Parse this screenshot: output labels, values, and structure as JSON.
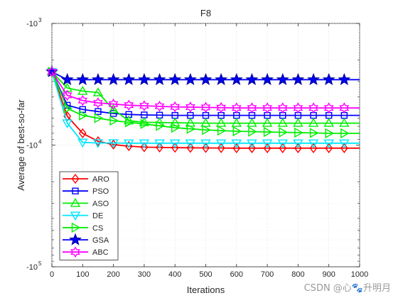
{
  "chart_data": {
    "type": "line",
    "title": "F8",
    "xlabel": "Iterations",
    "ylabel": "Average of best-so-far",
    "xlim": [
      0,
      1000
    ],
    "ylim": [
      -100000,
      -1000
    ],
    "yscale": "log",
    "grid": true,
    "legend_position": "lower-left",
    "x_ticks": [
      0,
      100,
      200,
      300,
      400,
      500,
      600,
      700,
      800,
      900,
      1000
    ],
    "x_tick_labels": [
      "0",
      "100",
      "200",
      "300",
      "400",
      "500",
      "600",
      "700",
      "800",
      "900",
      "1000"
    ],
    "y_ticks": [
      -1000,
      -10000,
      -100000
    ],
    "y_tick_labels": [
      "-10^3",
      "-10^4",
      "-10^5"
    ],
    "marker_x": [
      0,
      50,
      100,
      150,
      200,
      250,
      300,
      350,
      400,
      450,
      500,
      550,
      600,
      650,
      700,
      750,
      800,
      850,
      900,
      950
    ],
    "x": [
      0,
      50,
      100,
      150,
      200,
      250,
      300,
      400,
      500,
      600,
      700,
      800,
      900,
      1000
    ],
    "series": [
      {
        "name": "ARO",
        "color": "#ff0000",
        "marker": "diamond",
        "values": [
          -2500,
          -5800,
          -8000,
          -9300,
          -9900,
          -10200,
          -10400,
          -10500,
          -10550,
          -10600,
          -10600,
          -10600,
          -10600,
          -10600
        ]
      },
      {
        "name": "PSO",
        "color": "#0000ff",
        "marker": "square",
        "values": [
          -2500,
          -4700,
          -5100,
          -5300,
          -5500,
          -5600,
          -5650,
          -5700,
          -5700,
          -5700,
          -5700,
          -5700,
          -5700,
          -5700
        ]
      },
      {
        "name": "ASO",
        "color": "#00ee00",
        "marker": "triangle-up",
        "values": [
          -2500,
          -3400,
          -3600,
          -3700,
          -5100,
          -6300,
          -6500,
          -6550,
          -6600,
          -6600,
          -6600,
          -6600,
          -6600,
          -6600
        ]
      },
      {
        "name": "DE",
        "color": "#00e5ff",
        "marker": "triangle-down",
        "values": [
          -2500,
          -6600,
          -9500,
          -9600,
          -9600,
          -9650,
          -9650,
          -9650,
          -9650,
          -9650,
          -9650,
          -9650,
          -9650,
          -9650
        ]
      },
      {
        "name": "CS",
        "color": "#00ee00",
        "marker": "triangle-right",
        "values": [
          -2500,
          -5000,
          -5700,
          -6000,
          -6300,
          -6500,
          -6700,
          -7200,
          -7500,
          -7700,
          -7800,
          -7900,
          -8000,
          -8000
        ]
      },
      {
        "name": "GSA",
        "color": "#0000ff",
        "marker": "star",
        "values": [
          -2500,
          -2900,
          -2900,
          -2900,
          -2900,
          -2900,
          -2900,
          -2900,
          -2900,
          -2900,
          -2900,
          -2900,
          -2900,
          -2900
        ]
      },
      {
        "name": "ABC",
        "color": "#ff00ff",
        "marker": "hexagram",
        "values": [
          -2500,
          -3900,
          -4300,
          -4500,
          -4600,
          -4700,
          -4750,
          -4850,
          -4900,
          -4950,
          -4950,
          -4950,
          -4950,
          -4950
        ]
      }
    ]
  },
  "watermark": "CSDN @心🐾升明月"
}
